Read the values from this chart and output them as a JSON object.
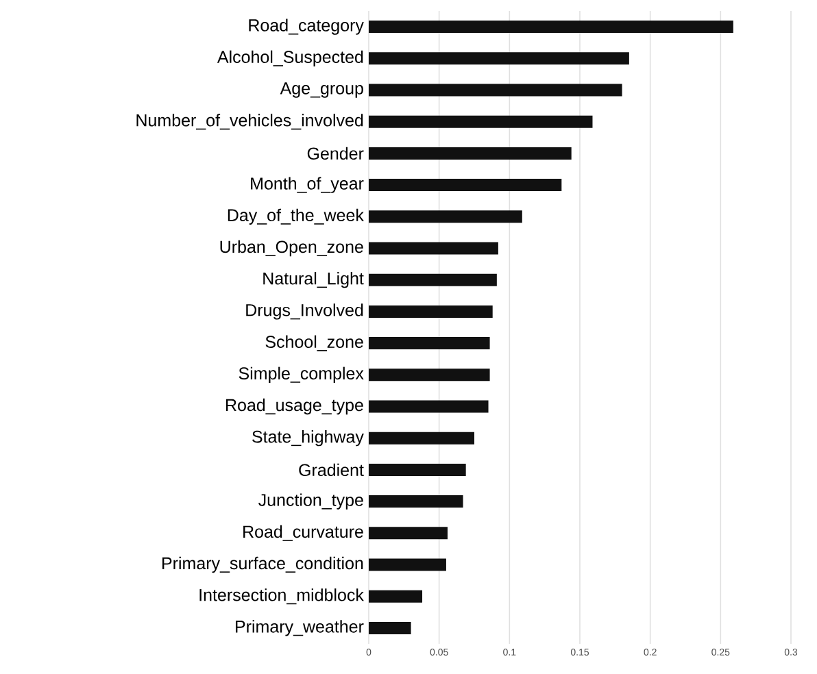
{
  "chart_data": {
    "type": "bar",
    "orientation": "horizontal",
    "categories": [
      "Road_category",
      "Alcohol_Suspected",
      "Age_group",
      "Number_of_vehicles_involved",
      "Gender",
      "Month_of_year",
      "Day_of_the_week",
      "Urban_Open_zone",
      "Natural_Light",
      "Drugs_Involved",
      "School_zone",
      "Simple_complex",
      "Road_usage_type",
      "State_highway",
      "Gradient",
      "Junction_type",
      "Road_curvature",
      "Primary_surface_condition",
      "Intersection_midblock",
      "Primary_weather"
    ],
    "values": [
      0.259,
      0.185,
      0.18,
      0.159,
      0.144,
      0.137,
      0.109,
      0.092,
      0.091,
      0.088,
      0.086,
      0.086,
      0.085,
      0.075,
      0.069,
      0.067,
      0.056,
      0.055,
      0.038,
      0.03
    ],
    "color": "#111111",
    "xlim": [
      0,
      0.3
    ],
    "xticks": [
      0,
      0.05,
      0.1,
      0.15,
      0.2,
      0.25,
      0.3
    ],
    "grid": "x"
  }
}
